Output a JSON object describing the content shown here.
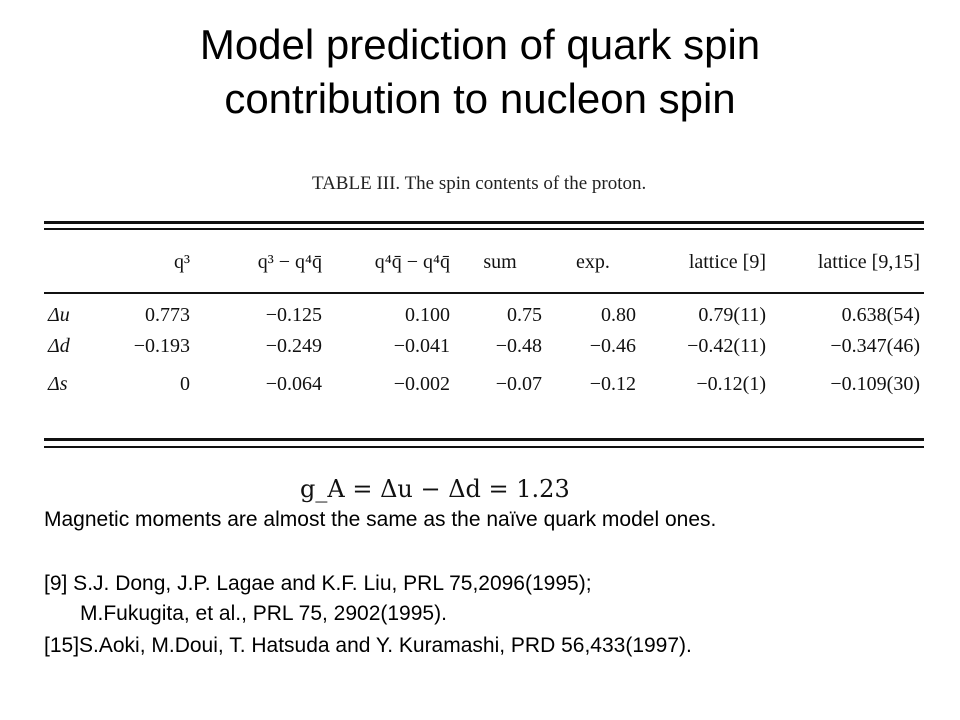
{
  "title": {
    "line1": "Model prediction of quark spin",
    "line2": "contribution to nucleon spin"
  },
  "table": {
    "caption": "TABLE III. The spin contents of the proton.",
    "headers": [
      "",
      "q³",
      "q³ − q⁴q̄",
      "q⁴q̄ − q⁴q̄",
      "sum",
      "exp.",
      "lattice [9]",
      "lattice [9,15]"
    ],
    "rows": [
      {
        "label": "Δu",
        "cells": [
          "0.773",
          "−0.125",
          "0.100",
          "0.75",
          "0.80",
          "0.79(11)",
          "0.638(54)"
        ]
      },
      {
        "label": "Δd",
        "cells": [
          "−0.193",
          "−0.249",
          "−0.041",
          "−0.48",
          "−0.46",
          "−0.42(11)",
          "−0.347(46)"
        ]
      },
      {
        "label": "Δs",
        "cells": [
          "0",
          "−0.064",
          "−0.002",
          "−0.07",
          "−0.12",
          "−0.12(1)",
          "−0.109(30)"
        ]
      }
    ]
  },
  "formula": "g_A = Δu − Δd = 1.23",
  "note": "Magnetic moments are almost the same as the naïve quark model ones.",
  "references": [
    "[9] S.J. Dong, J.P. Lagae and K.F. Liu, PRL 75,2096(1995);",
    "M.Fukugita, et al., PRL 75, 2902(1995).",
    "[15]S.Aoki, M.Doui, T. Hatsuda and Y. Kuramashi, PRD 56,433(1997)."
  ]
}
